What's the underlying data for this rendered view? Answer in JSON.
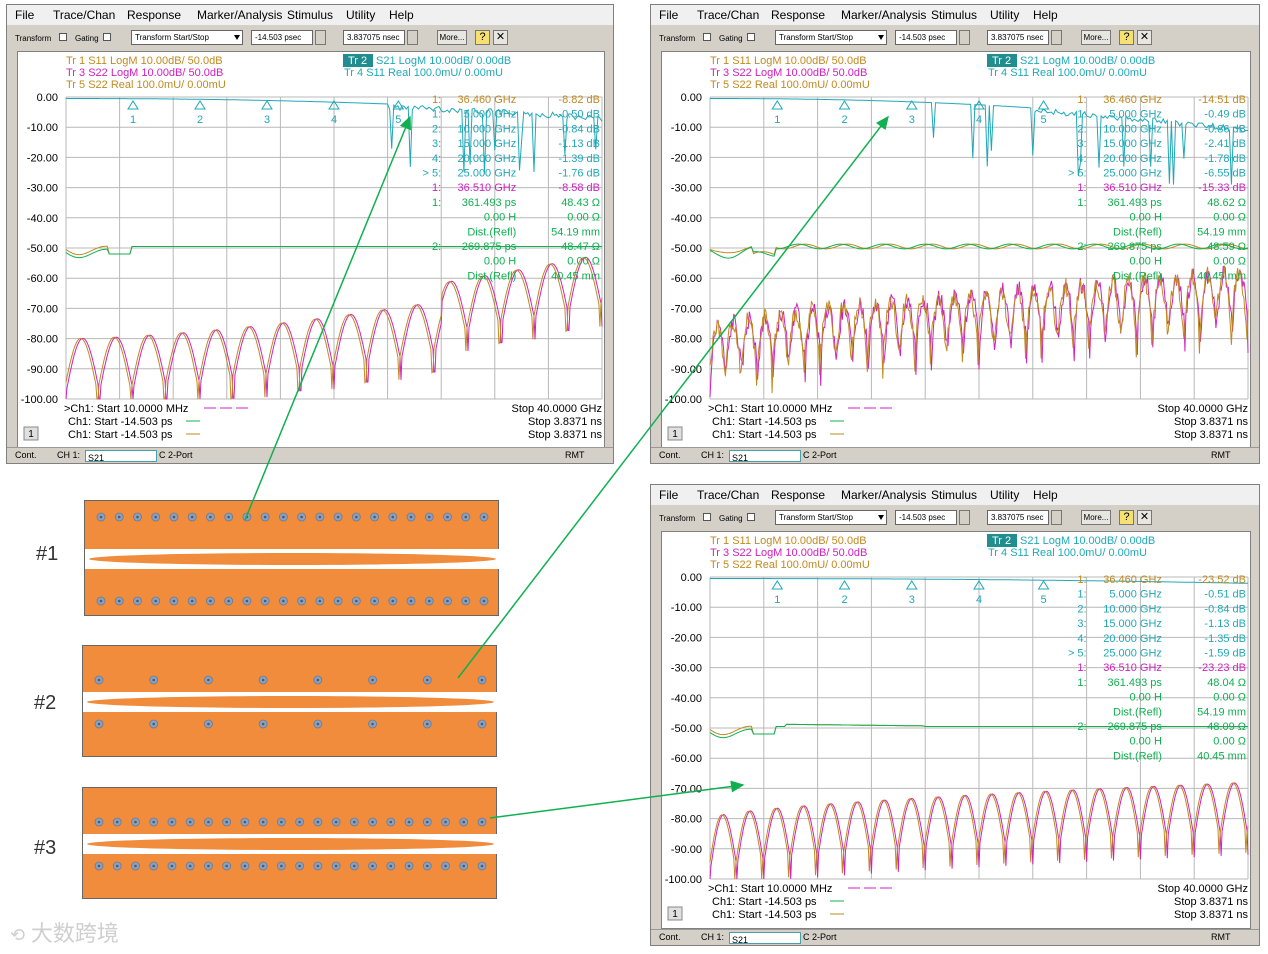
{
  "menu": [
    "File",
    "Trace/Chan",
    "Response",
    "Marker/Analysis",
    "Stimulus",
    "Utility",
    "Help"
  ],
  "toolbar": {
    "transform_label": "Transform",
    "gating_label": "Gating",
    "mode_value": "Transform Start/Stop",
    "start_value": "-14.503 psec",
    "stop_value": "3.837075 nsec",
    "more_label": "More...",
    "help_icon": "help-icon",
    "close_icon": "close-icon"
  },
  "traces": {
    "tr1": "Tr 1  S11 LogM 10.00dB/ 50.0dB",
    "tr3": "Tr 3  S22 LogM 10.00dB/ 50.0dB",
    "tr5": "Tr 5  S22 Real 100.0mU/ 0.00mU",
    "tr2_box": "Tr 2",
    "tr2": "S21 LogM 10.00dB/ 0.00dB",
    "tr4": "Tr 4  S11 Real 100.0mU/ 0.00mU"
  },
  "yaxis": [
    "0.00",
    "-10.00",
    "-20.00",
    "-30.00",
    "-40.00",
    "-50.00",
    "-60.00",
    "-70.00",
    "-80.00",
    "-90.00",
    "-100.00"
  ],
  "footer": {
    "line1_left": ">Ch1: Start  10.0000 MHz",
    "line1_right": "Stop  40.0000 GHz",
    "line2_left": "Ch1: Start  -14.503 ps",
    "line2_right": "Stop  3.8371 ns",
    "line3_left": "Ch1: Start  -14.503 ps",
    "line3_right": "Stop  3.8371 ns",
    "channel_box": "1"
  },
  "status": {
    "cont": "Cont.",
    "ch": "CH 1:",
    "param": "S21",
    "mode": "C  2-Port",
    "rmt": "RMT"
  },
  "colors": {
    "s11": "#c08a20",
    "s22": "#d020c0",
    "s21": "#20a8b8",
    "green": "#10b050",
    "board": "#f08c3c",
    "via": "#8aa0c0"
  },
  "windows": [
    {
      "markers_col1": [
        "1:",
        "1:",
        "2:",
        "3:",
        "4:",
        "> 5:",
        "1:",
        "1:",
        "",
        "",
        "2:",
        "",
        ""
      ],
      "markers_col2": [
        "36.460 GHz",
        "5.000 GHz",
        "10.000 GHz",
        "15.000 GHz",
        "20.000 GHz",
        "25.000 GHz",
        "36.510 GHz",
        "361.493 ps",
        "0.00 H",
        "Dist.(Refl)",
        "269.875 ps",
        "0.00 H",
        "Dist.(Refl)"
      ],
      "markers_col3": [
        "-8.82 dB",
        "-0.50 dB",
        "-0.84 dB",
        "-1.13 dB",
        "-1.39 dB",
        "-1.76 dB",
        "-8.58 dB",
        "48.43 Ω",
        "0.00 Ω",
        "54.19 mm",
        "48.47 Ω",
        "0.00 Ω",
        "40.45 mm"
      ]
    },
    {
      "markers_col1": [
        "1:",
        "1:",
        "2:",
        "3:",
        "4:",
        "> 5:",
        "1:",
        "1:",
        "",
        "",
        "2:",
        "",
        ""
      ],
      "markers_col2": [
        "36.460 GHz",
        "5.000 GHz",
        "10.000 GHz",
        "15.000 GHz",
        "20.000 GHz",
        "25.000 GHz",
        "36.510 GHz",
        "361.493 ps",
        "0.00 H",
        "Dist.(Refl)",
        "269.875 ps",
        "0.00 H",
        "Dist.(Refl)"
      ],
      "markers_col3": [
        "-14.51 dB",
        "-0.49 dB",
        "-0.86 dB",
        "-2.41 dB",
        "-1.78 dB",
        "-6.55 dB",
        "-15.33 dB",
        "48.62 Ω",
        "0.00 Ω",
        "54.19 mm",
        "48.59 Ω",
        "0.00 Ω",
        "40.45 mm"
      ]
    },
    {
      "markers_col1": [
        "1:",
        "1:",
        "2:",
        "3:",
        "4:",
        "> 5:",
        "1:",
        "1:",
        "",
        "",
        "2:",
        "",
        ""
      ],
      "markers_col2": [
        "36.460 GHz",
        "5.000 GHz",
        "10.000 GHz",
        "15.000 GHz",
        "20.000 GHz",
        "25.000 GHz",
        "36.510 GHz",
        "361.493 ps",
        "0.00 H",
        "Dist.(Refl)",
        "269.875 ps",
        "0.00 H",
        "Dist.(Refl)"
      ],
      "markers_col3": [
        "-23.52 dB",
        "-0.51 dB",
        "-0.84 dB",
        "-1.13 dB",
        "-1.35 dB",
        "-1.59 dB",
        "-23.23 dB",
        "48.04 Ω",
        "0.00 Ω",
        "54.19 mm",
        "48.09 Ω",
        "0.00 Ω",
        "40.45 mm"
      ]
    }
  ],
  "boards": [
    "#1",
    "#2",
    "#3"
  ],
  "watermark": "大数跨境"
}
